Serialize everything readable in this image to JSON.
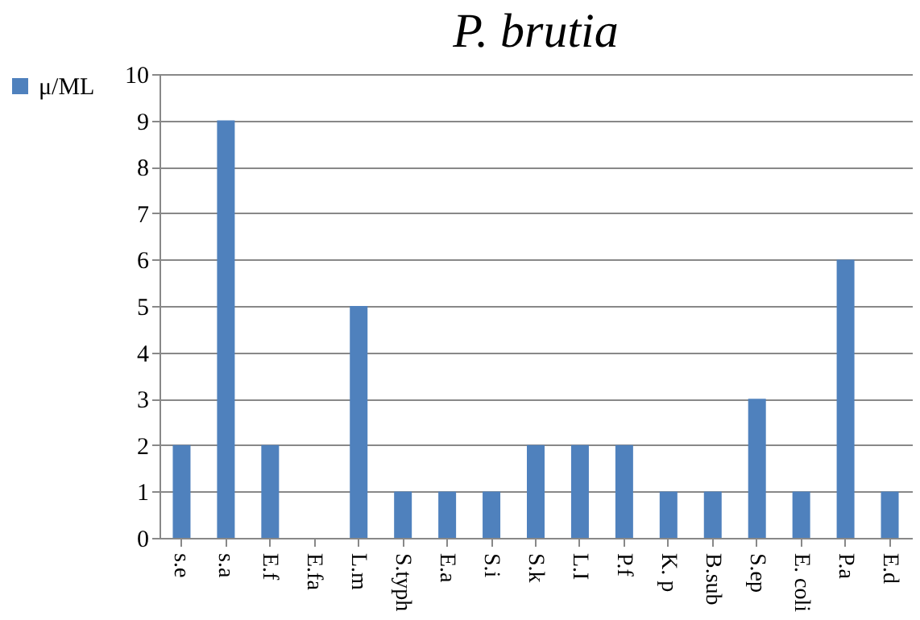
{
  "chart_data": {
    "type": "bar",
    "title": "P. brutia",
    "categories": [
      "s.e",
      "s.a",
      "E.f",
      "E.fa",
      "L.m",
      "S.typh",
      "E.a",
      "S.i",
      "S.k",
      "L.I",
      "P.f",
      "K. p",
      "B.sub",
      "S.ep",
      "E. coli",
      "P.a",
      "E.d"
    ],
    "series": [
      {
        "name": "μ/ML",
        "color": "#4f81bd",
        "values": [
          2,
          9,
          2,
          0,
          5,
          1,
          1,
          1,
          2,
          2,
          2,
          1,
          1,
          3,
          1,
          6,
          1
        ]
      }
    ],
    "ylim": [
      0,
      10
    ],
    "yticks": [
      0,
      1,
      2,
      3,
      4,
      5,
      6,
      7,
      8,
      9,
      10
    ],
    "grid": "y",
    "legend": "left"
  }
}
